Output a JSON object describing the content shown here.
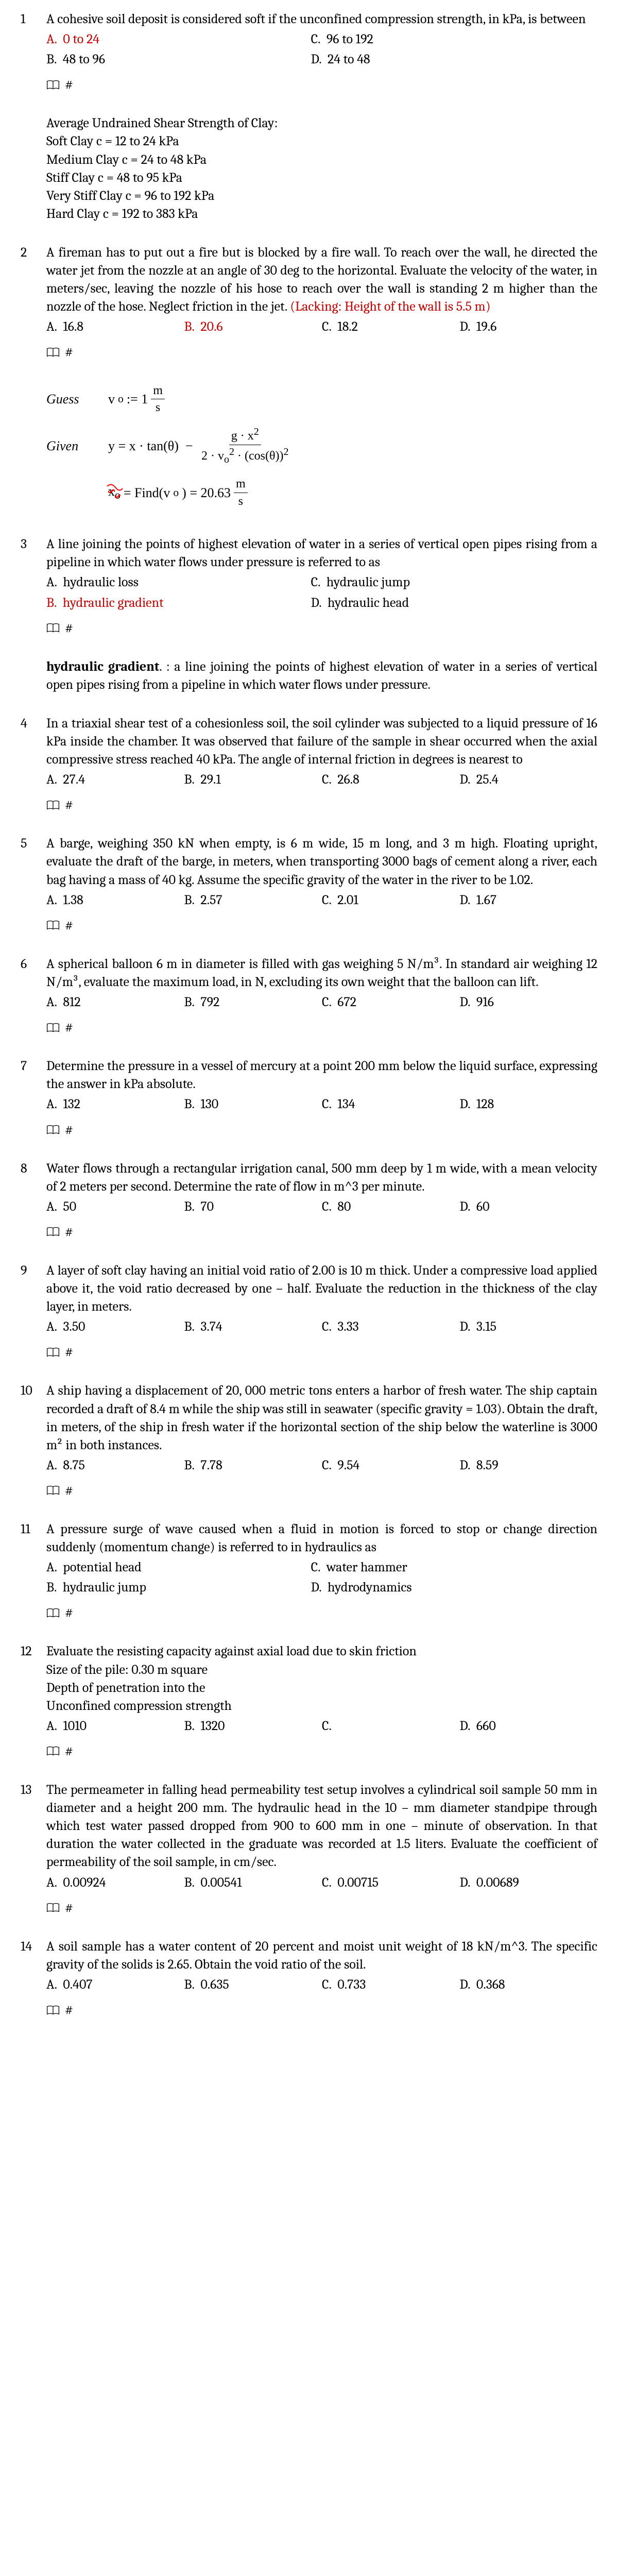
{
  "questions": [
    {
      "num": "1",
      "text": "A cohesive soil deposit is considered soft if the unconfined compression strength, in kPa, is between",
      "opts": {
        "A": "0 to 24",
        "B": "48 to 96",
        "C": "96 to 192",
        "D": "24 to 48"
      },
      "answer": "A",
      "note_lines": [
        "Average Undrained Shear Strength of Clay:",
        "Soft Clay c = 12 to 24 kPa",
        "Medium Clay c = 24 to 48 kPa",
        "Stiff Clay c = 48 to 95 kPa",
        "Very Stiff Clay c = 96 to 192 kPa",
        "Hard Clay c = 192 to 383  kPa"
      ]
    },
    {
      "num": "2",
      "text": "A fireman has to put out a fire but is blocked by a fire wall. To reach over the wall, he directed the water jet from the nozzle at an angle of 30 deg to the horizontal. Evaluate the velocity of the water, in meters/sec, leaving the nozzle of his hose to reach over the wall is standing 2 m higher than the nozzle of the hose. Neglect friction in the jet. ",
      "lacking": "(Lacking: Height of the wall is 5.5 m)",
      "opts": {
        "A": "16.8",
        "B": "20.6",
        "C": "18.2",
        "D": "19.6"
      },
      "answer": "B",
      "formula": true
    },
    {
      "num": "3",
      "text": "A line joining the points of highest elevation of water in a series of vertical open pipes rising from a pipeline in which water flows under pressure is referred to as",
      "opts": {
        "A": "hydraulic loss",
        "B": "hydraulic gradient",
        "C": "hydraulic jump",
        "D": "hydraulic head"
      },
      "answer": "B",
      "def_term": "hydraulic gradient",
      "def": ". : a line joining the points of highest elevation of water in a series of vertical open pipes rising from a pipeline in which water flows under pressure."
    },
    {
      "num": "4",
      "text": "In a triaxial shear test of a cohesionless soil, the soil cylinder was subjected to a liquid pressure of 16 kPa inside the chamber. It was observed that failure of the sample in shear occurred when the axial compressive stress reached 40 kPa. The angle of internal friction in degrees is nearest to",
      "opts": {
        "A": "27.4",
        "B": "29.1",
        "C": "26.8",
        "D": "25.4"
      }
    },
    {
      "num": "5",
      "text": "A barge, weighing 350 kN when empty, is 6 m wide, 15 m long, and 3 m high. Floating upright, evaluate the draft of the barge, in meters, when transporting 3000 bags of cement along a river, each bag having a mass of 40 kg. Assume the specific gravity of the water in the river to be 1.02.",
      "opts": {
        "A": "1.38",
        "B": "2.57",
        "C": "2.01",
        "D": "1.67"
      }
    },
    {
      "num": "6",
      "text": "A spherical balloon 6 m in diameter is filled with gas weighing 5 N/m³. In standard air weighing 12 N/m³, evaluate the maximum load, in N, excluding its own weight that the balloon can lift.",
      "opts": {
        "A": "812",
        "B": "792",
        "C": "672",
        "D": "916"
      }
    },
    {
      "num": "7",
      "text": "Determine the pressure in a vessel of mercury at a point 200 mm below the liquid surface, expressing the answer in kPa absolute.",
      "opts": {
        "A": "132",
        "B": "130",
        "C": "134",
        "D": "128"
      }
    },
    {
      "num": "8",
      "text": "Water flows through a rectangular irrigation canal, 500 mm deep by 1 m wide, with a mean velocity of 2 meters per second. Determine the rate of flow in m^3 per minute.",
      "opts": {
        "A": "50",
        "B": "70",
        "C": "80",
        "D": "60"
      }
    },
    {
      "num": "9",
      "text": "A layer of soft clay having an initial void ratio of 2.00 is 10 m thick. Under a compressive load applied above it, the void ratio decreased by one – half. Evaluate the reduction in the thickness of the clay layer, in meters.",
      "opts": {
        "A": "3.50",
        "B": "3.74",
        "C": "3.33",
        "D": "3.15"
      }
    },
    {
      "num": "10",
      "text": "A ship having a displacement of 20, 000 metric tons enters a harbor of fresh water. The ship captain recorded a draft of 8.4 m while the ship was still in seawater (specific gravity = 1.03). Obtain the draft, in meters, of the ship in fresh water if the horizontal section of the ship below the waterline is 3000 m² in both instances.",
      "opts": {
        "A": "8.75",
        "B": "7.78",
        "C": "9.54",
        "D": "8.59"
      }
    },
    {
      "num": "11",
      "text": "A pressure surge of wave caused when a fluid in motion is forced to stop or change direction suddenly (momentum change) is referred to in hydraulics as",
      "opts": {
        "A": "potential head",
        "B": "hydraulic jump",
        "C": "water hammer",
        "D": "hydrodynamics"
      }
    },
    {
      "num": "12",
      "text": "Evaluate the resisting capacity against axial load due to skin friction",
      "extra_lines": [
        "Size of the pile: 0.30 m square",
        "Depth of penetration into the",
        "Unconfined compression strength"
      ],
      "opts": {
        "A": "1010",
        "B": "1320",
        "C": "",
        "D": "660"
      }
    },
    {
      "num": "13",
      "text": "The permeameter in falling head permeability test setup involves a cylindrical soil sample 50 mm in diameter and a height 200 mm. The hydraulic head in the 10 – mm diameter standpipe through which test water passed dropped from 900 to 600 mm in one – minute of observation. In that duration the water collected in the graduate was recorded at 1.5 liters. Evaluate the coefficient of permeability of the soil sample, in cm/sec.",
      "opts": {
        "A": "0.00924",
        "B": "0.00541",
        "C": "0.00715",
        "D": "0.00689"
      }
    },
    {
      "num": "14",
      "text": "A soil sample has a water content of 20 percent and moist unit weight of 18 kN/m^3. The specific gravity of the solids is 2.65. Obtain the void ratio of the soil.",
      "opts": {
        "A": "0.407",
        "B": "0.635",
        "C": "0.733",
        "D": "0.368"
      }
    }
  ],
  "hash": "#",
  "guess_label": "Guess",
  "given_label": "Given",
  "vo_value": "20.63",
  "vo_unit_num": "m",
  "vo_unit_den": "s",
  "vo_init": "1",
  "find_label": "Find"
}
